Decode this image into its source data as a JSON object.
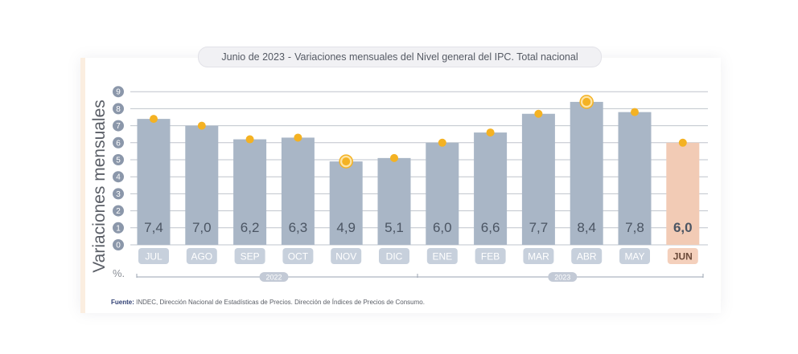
{
  "chart_data": {
    "type": "bar",
    "title_prefix": "Junio de 2023",
    "title_sep": "-",
    "title_main": "Variaciones mensuales del Nivel general del IPC. Total nacional",
    "ylabel": "Variaciones mensuales",
    "unit": "%.",
    "ylim": [
      0,
      9
    ],
    "yticks": [
      "0",
      "1",
      "2",
      "3",
      "4",
      "5",
      "6",
      "7",
      "8",
      "9"
    ],
    "categories": [
      "JUL",
      "AGO",
      "SEP",
      "OCT",
      "NOV",
      "DIC",
      "ENE",
      "FEB",
      "MAR",
      "ABR",
      "MAY",
      "JUN"
    ],
    "values": [
      7.4,
      7.0,
      6.2,
      6.3,
      4.9,
      5.1,
      6.0,
      6.6,
      7.7,
      8.4,
      7.8,
      6.0
    ],
    "value_labels": [
      "7,4",
      "7,0",
      "6,2",
      "6,3",
      "4,9",
      "5,1",
      "6,0",
      "6,6",
      "7,7",
      "8,4",
      "7,8",
      "6,0"
    ],
    "highlight_index": 11,
    "ringed_indices": [
      4,
      9
    ],
    "years": [
      {
        "label": "2022",
        "from": 0,
        "to": 5
      },
      {
        "label": "2023",
        "from": 6,
        "to": 11
      }
    ],
    "colors": {
      "bar": "#a9b6c6",
      "bar_highlight": "#f2cbb5",
      "pill": "#c7d0dc",
      "pill_highlight": "#f4d0bc",
      "dot": "#f4b223",
      "grid": "#bfc4cc",
      "tick_circle": "#8b97aa",
      "label": "#4b5563",
      "year_pill": "#c3cad6"
    }
  },
  "source": {
    "label": "Fuente:",
    "text": "INDEC, Dirección Nacional de Estadísticas de Precios. Dirección de Índices de Precios de Consumo."
  }
}
